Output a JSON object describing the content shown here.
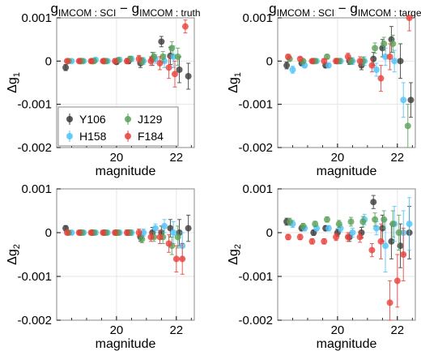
{
  "figure": {
    "colors": {
      "Y106": "#3a3a3a",
      "H158": "#4fc3f7",
      "J129": "#5aa05a",
      "F184": "#e8403a"
    }
  },
  "chart_data": [
    {
      "type": "scatter",
      "panel": "top-left",
      "title_main": "g",
      "title_sub1": "IMCOM : SCI",
      "title_mid": " − g",
      "title_sub2": "IMCOM : truth",
      "xlabel": "magnitude",
      "ylabel_main": "Δg",
      "ylabel_sub": "1",
      "xlim": [
        18.0,
        22.6
      ],
      "ylim": [
        -0.002,
        0.001
      ],
      "xticks": [
        20,
        22
      ],
      "yticks": [
        -0.002,
        -0.001,
        0,
        0.001
      ],
      "ytick_labels": [
        "-0.002",
        "-0.001",
        "0",
        "0.001"
      ],
      "xtick_labels": [
        "20",
        "22"
      ],
      "grid": true,
      "legend": {
        "position": "bottom-left",
        "entries": [
          "Y106",
          "H158",
          "J129",
          "F184"
        ]
      },
      "series": [
        {
          "name": "Y106",
          "x": [
            18.3,
            18.8,
            19.2,
            19.6,
            20.0,
            20.4,
            20.8,
            21.2,
            21.5,
            21.8,
            22.1,
            22.4
          ],
          "y": [
            -0.00015,
            0.0,
            0.0,
            0.0,
            -2e-05,
            0.0,
            -5e-05,
            5e-05,
            0.00045,
            0.00012,
            -0.0002,
            -0.00035
          ],
          "err": [
            7e-05,
            4e-05,
            4e-05,
            4e-05,
            5e-05,
            6e-05,
            0.0001,
            0.00015,
            0.00012,
            0.0002,
            0.0003,
            0.0003
          ]
        },
        {
          "name": "H158",
          "x": [
            18.5,
            18.9,
            19.3,
            19.7,
            20.1,
            20.5,
            20.9,
            21.3,
            21.6,
            21.9
          ],
          "y": [
            0.0,
            0.0,
            3e-05,
            0.0,
            3e-05,
            5e-05,
            0.0,
            5e-05,
            0.0,
            0.0001
          ],
          "err": [
            3e-05,
            3e-05,
            4e-05,
            4e-05,
            5e-05,
            6e-05,
            8e-05,
            0.0001,
            0.00015,
            0.00025
          ]
        },
        {
          "name": "J129",
          "x": [
            18.4,
            18.85,
            19.25,
            19.65,
            20.05,
            20.45,
            20.85,
            21.25,
            21.55,
            21.85,
            22.05
          ],
          "y": [
            0.0,
            0.0,
            0.0,
            0.0,
            2e-05,
            5e-05,
            0.0,
            0.0001,
            0.0001,
            0.0003,
            0.0001
          ],
          "err": [
            3e-05,
            3e-05,
            4e-05,
            4e-05,
            5e-05,
            6e-05,
            8e-05,
            0.0001,
            0.00012,
            0.00015,
            0.0002
          ]
        },
        {
          "name": "F184",
          "x": [
            18.35,
            18.75,
            19.15,
            19.55,
            19.95,
            20.35,
            20.75,
            21.15,
            21.45,
            21.75,
            21.95,
            22.3
          ],
          "y": [
            0.0,
            0.0,
            0.0,
            0.0,
            0.0,
            0.0,
            5e-05,
            0.0,
            -5e-05,
            -0.00015,
            -0.0003,
            0.0008
          ],
          "err": [
            3e-05,
            3e-05,
            4e-05,
            4e-05,
            5e-05,
            6e-05,
            8e-05,
            0.0001,
            0.00015,
            0.00025,
            0.0003,
            0.00015
          ]
        }
      ]
    },
    {
      "type": "scatter",
      "panel": "top-right",
      "title_main": "g",
      "title_sub1": "IMCOM : SCI",
      "title_mid": " − g",
      "title_sub2": "IMCOM : target",
      "xlabel": "magnitude",
      "ylabel_main": "Δg",
      "ylabel_sub": "1",
      "xlim": [
        18.0,
        22.6
      ],
      "ylim": [
        -0.002,
        0.001
      ],
      "xticks": [
        20,
        22
      ],
      "yticks": [
        -0.002,
        -0.001,
        0,
        0.001
      ],
      "ytick_labels": [
        "-0.002",
        "-0.001",
        "0",
        "0.001"
      ],
      "xtick_labels": [
        "20",
        "22"
      ],
      "grid": true,
      "series": [
        {
          "name": "Y106",
          "x": [
            18.3,
            18.8,
            19.2,
            19.6,
            20.0,
            20.4,
            20.8,
            21.2,
            21.5,
            21.8,
            22.1,
            22.45
          ],
          "y": [
            -0.0001,
            -5e-05,
            0.0,
            -0.0001,
            0.0,
            0.0,
            -0.0001,
            5e-05,
            0.0003,
            0.0005,
            0.0,
            -0.0009
          ],
          "err": [
            8e-05,
            5e-05,
            5e-05,
            5e-05,
            6e-05,
            8e-05,
            0.0001,
            0.00015,
            0.0002,
            0.0003,
            0.0004,
            0.0004
          ]
        },
        {
          "name": "H158",
          "x": [
            18.5,
            18.9,
            19.3,
            19.7,
            20.1,
            20.5,
            20.9,
            21.3,
            21.6,
            21.9,
            22.2
          ],
          "y": [
            -0.0002,
            -0.0001,
            0.0,
            -0.0001,
            0.0,
            0.0,
            0.0,
            -0.0002,
            0.0001,
            0.0,
            -0.0009
          ],
          "err": [
            8e-05,
            5e-05,
            5e-05,
            5e-05,
            6e-05,
            8e-05,
            0.0001,
            0.00015,
            0.0002,
            0.00025,
            0.0004
          ]
        },
        {
          "name": "J129",
          "x": [
            18.4,
            18.85,
            19.25,
            19.65,
            20.05,
            20.45,
            20.85,
            21.25,
            21.55,
            21.85,
            22.35
          ],
          "y": [
            5e-05,
            0.0,
            0.0,
            0.0001,
            0.0,
            0.0,
            0.0,
            0.0003,
            0.0004,
            0.0004,
            -0.0015
          ],
          "err": [
            4e-05,
            4e-05,
            4e-05,
            5e-05,
            6e-05,
            7e-05,
            9e-05,
            0.00012,
            0.00015,
            0.0002,
            0.0005
          ]
        },
        {
          "name": "F184",
          "x": [
            18.35,
            18.75,
            19.15,
            19.55,
            19.95,
            20.35,
            20.75,
            21.15,
            21.45,
            21.75,
            22.4
          ],
          "y": [
            0.0001,
            5e-05,
            0.0,
            0.0,
            0.0,
            0.0001,
            0.0,
            -0.0001,
            -0.0004,
            0.0001,
            0.001
          ],
          "err": [
            4e-05,
            4e-05,
            4e-05,
            5e-05,
            6e-05,
            8e-05,
            0.0001,
            0.00015,
            0.0003,
            0.0003,
            0.0003
          ]
        }
      ]
    },
    {
      "type": "scatter",
      "panel": "bottom-left",
      "xlabel": "magnitude",
      "ylabel_main": "Δg",
      "ylabel_sub": "2",
      "xlim": [
        18.0,
        22.6
      ],
      "ylim": [
        -0.002,
        0.001
      ],
      "xticks": [
        20,
        22
      ],
      "yticks": [
        -0.002,
        -0.001,
        0,
        0.001
      ],
      "ytick_labels": [
        "-0.002",
        "-0.001",
        "0",
        "0.001"
      ],
      "xtick_labels": [
        "20",
        "22"
      ],
      "grid": true,
      "series": [
        {
          "name": "Y106",
          "x": [
            18.3,
            18.8,
            19.2,
            19.6,
            20.0,
            20.4,
            20.8,
            21.2,
            21.5,
            21.8,
            22.1,
            22.4
          ],
          "y": [
            0.0001,
            0.0,
            0.0,
            0.0,
            0.0,
            0.0,
            -0.0001,
            0.0,
            0.0,
            0.0001,
            0.0,
            0.0001
          ],
          "err": [
            6e-05,
            4e-05,
            4e-05,
            4e-05,
            5e-05,
            6e-05,
            0.0001,
            0.00012,
            0.00015,
            0.0002,
            0.0003,
            0.0003
          ]
        },
        {
          "name": "H158",
          "x": [
            18.5,
            18.9,
            19.3,
            19.7,
            20.1,
            20.5,
            20.9,
            21.3,
            21.6,
            21.9,
            22.2
          ],
          "y": [
            0.0,
            0.0,
            0.0,
            0.0,
            0.0,
            0.0,
            0.0,
            0.0001,
            0.00015,
            0.0,
            -0.0003
          ],
          "err": [
            4e-05,
            4e-05,
            4e-05,
            4e-05,
            5e-05,
            6e-05,
            8e-05,
            0.0001,
            0.00015,
            0.00025,
            0.0003
          ]
        },
        {
          "name": "J129",
          "x": [
            18.4,
            18.85,
            19.25,
            19.65,
            20.05,
            20.45,
            20.85,
            21.25,
            21.55,
            21.85,
            22.05
          ],
          "y": [
            0.0,
            0.0,
            0.0,
            0.0,
            0.0,
            0.0,
            -0.00015,
            -0.0001,
            -0.0001,
            -0.0003,
            -0.0001
          ],
          "err": [
            4e-05,
            4e-05,
            4e-05,
            4e-05,
            5e-05,
            6e-05,
            8e-05,
            0.0001,
            0.00015,
            0.0002,
            0.00025
          ]
        },
        {
          "name": "F184",
          "x": [
            18.35,
            18.75,
            19.15,
            19.55,
            19.95,
            20.35,
            20.75,
            21.15,
            21.45,
            21.75,
            22.0,
            22.2
          ],
          "y": [
            0.0,
            0.0,
            0.0,
            0.0,
            0.0,
            0.0,
            0.0,
            -0.0001,
            -0.0001,
            -0.00025,
            -0.0006,
            -0.0006
          ],
          "err": [
            4e-05,
            4e-05,
            4e-05,
            4e-05,
            5e-05,
            6e-05,
            8e-05,
            0.0001,
            0.00015,
            0.0002,
            0.0003,
            0.00035
          ]
        }
      ]
    },
    {
      "type": "scatter",
      "panel": "bottom-right",
      "xlabel": "magnitude",
      "ylabel_main": "Δg",
      "ylabel_sub": "2",
      "xlim": [
        18.0,
        22.6
      ],
      "ylim": [
        -0.002,
        0.001
      ],
      "xticks": [
        20,
        22
      ],
      "yticks": [
        -0.002,
        -0.001,
        0,
        0.001
      ],
      "ytick_labels": [
        "-0.002",
        "-0.001",
        "0",
        "0.001"
      ],
      "xtick_labels": [
        "20",
        "22"
      ],
      "grid": true,
      "series": [
        {
          "name": "Y106",
          "x": [
            18.3,
            18.8,
            19.2,
            19.6,
            20.0,
            20.4,
            20.8,
            21.2,
            21.5,
            21.8,
            22.1,
            22.4
          ],
          "y": [
            0.00025,
            0.0001,
            0.0,
            0.0001,
            0.0,
            -0.0001,
            0.0,
            0.0007,
            0.0001,
            -0.0002,
            -0.0003,
            0.0
          ],
          "err": [
            8e-05,
            6e-05,
            6e-05,
            6e-05,
            8e-05,
            0.0001,
            0.00012,
            0.00015,
            0.0003,
            0.0004,
            0.0005,
            0.0006
          ]
        },
        {
          "name": "H158",
          "x": [
            18.5,
            18.9,
            19.3,
            19.7,
            20.1,
            20.5,
            20.9,
            21.3,
            21.6,
            21.9,
            22.2,
            22.4
          ],
          "y": [
            0.0002,
            0.0001,
            0.0001,
            0.0001,
            0.0001,
            0.0,
            0.0003,
            0.0001,
            -0.0003,
            0.0002,
            0.0,
            0.0002
          ],
          "err": [
            8e-05,
            6e-05,
            6e-05,
            6e-05,
            8e-05,
            0.0001,
            0.00012,
            0.00015,
            0.0006,
            0.0004,
            0.0005,
            0.0006
          ]
        },
        {
          "name": "J129",
          "x": [
            18.4,
            18.85,
            19.25,
            19.65,
            20.05,
            20.45,
            20.85,
            21.25,
            21.55,
            21.85,
            22.05
          ],
          "y": [
            0.00025,
            0.00015,
            0.0002,
            0.0003,
            0.0002,
            0.00025,
            0.00025,
            0.0003,
            0.0003,
            0.0002,
            0.0
          ],
          "err": [
            8e-05,
            6e-05,
            6e-05,
            6e-05,
            8e-05,
            0.0001,
            0.00012,
            0.00015,
            0.0002,
            0.0003,
            0.0004
          ]
        },
        {
          "name": "F184",
          "x": [
            18.35,
            18.75,
            19.15,
            19.55,
            19.95,
            20.35,
            20.75,
            21.15,
            21.45,
            21.75,
            22.0,
            22.2
          ],
          "y": [
            -0.0001,
            -0.0001,
            -0.0002,
            -0.0002,
            -0.0001,
            -0.0001,
            -0.0001,
            -0.0004,
            -0.0002,
            -0.0016,
            -0.0011,
            -0.0005
          ],
          "err": [
            6e-05,
            6e-05,
            6e-05,
            6e-05,
            8e-05,
            0.0001,
            0.00012,
            0.00015,
            0.0004,
            0.0005,
            0.0006,
            0.0006
          ]
        }
      ]
    }
  ]
}
